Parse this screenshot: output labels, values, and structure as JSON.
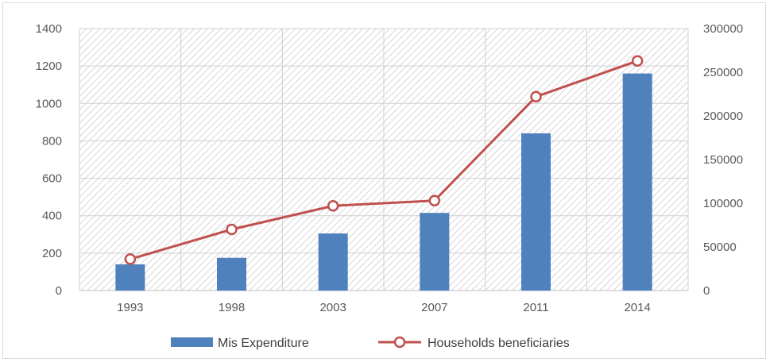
{
  "chart_data": {
    "type": "bar",
    "categories": [
      "1993",
      "1998",
      "2003",
      "2007",
      "2011",
      "2014"
    ],
    "series": [
      {
        "name": "Mis Expenditure",
        "kind": "bar",
        "axis": "left",
        "color": "#4f81bd",
        "values": [
          140,
          175,
          305,
          415,
          840,
          1160
        ]
      },
      {
        "name": "Households beneficiaries",
        "kind": "line",
        "axis": "right",
        "color": "#c0504d",
        "marker": "hollow-circle",
        "values": [
          36000,
          70000,
          97000,
          103000,
          222000,
          263000
        ]
      }
    ],
    "y_left": {
      "range": [
        0,
        1400
      ],
      "ticks": [
        "0",
        "200",
        "400",
        "600",
        "800",
        "1000",
        "1200",
        "1400"
      ]
    },
    "y_right": {
      "range": [
        0,
        300000
      ],
      "ticks": [
        "0",
        "50000",
        "100000",
        "150000",
        "200000",
        "250000",
        "300000"
      ]
    },
    "grid": true,
    "plot_background": "diagonal-hatch",
    "legend": {
      "position": "bottom"
    },
    "title": "",
    "xlabel": "",
    "ylabel": ""
  }
}
